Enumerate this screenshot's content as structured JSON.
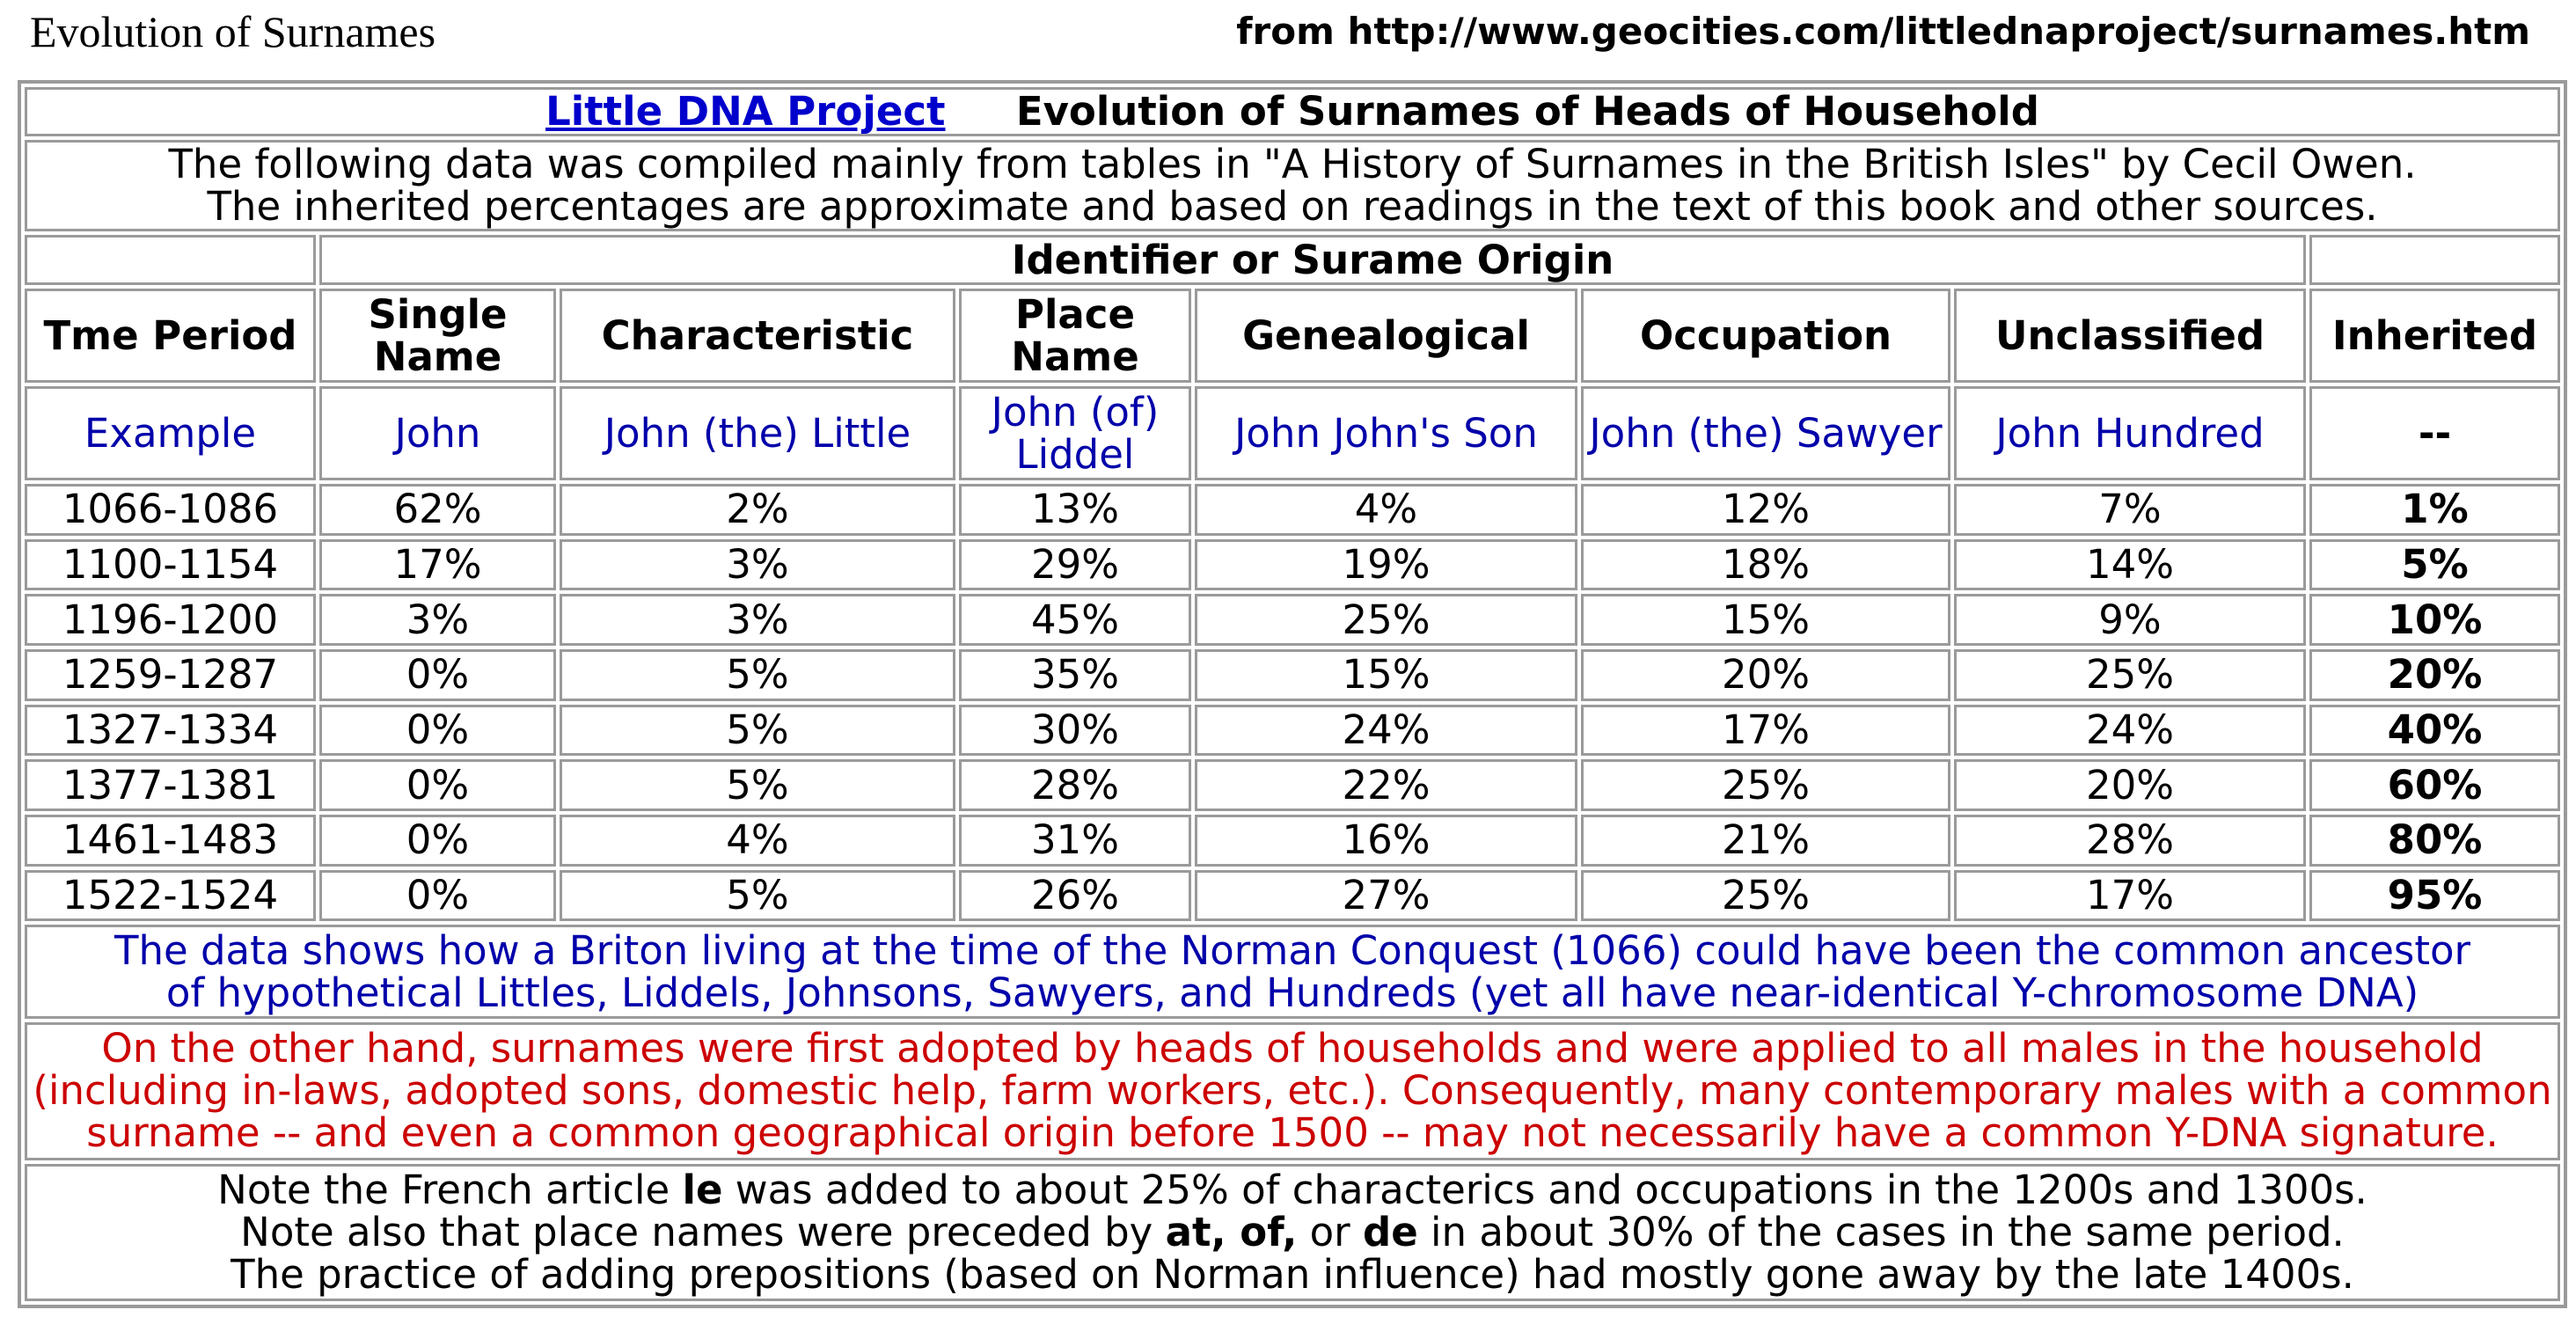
{
  "page": {
    "left_title": "Evolution of Surnames",
    "source": "from http://www.geocities.com/littlednaproject/surnames.htm"
  },
  "table": {
    "title_link": "Little DNA Project",
    "title": "Evolution of Surnames of Heads of Household",
    "intro": [
      "The following data was compiled mainly from tables in \"A History of Surnames in the British Isles\" by Cecil Owen.",
      "The inherited percentages are approximate and based on readings in the text of this book and other sources."
    ],
    "group_header": "Identifier or Surame Origin",
    "columns": [
      "Tme Period",
      "Single Name",
      "Characteristic",
      "Place Name",
      "Genealogical",
      "Occupation",
      "Unclassified",
      "Inherited"
    ],
    "examples": [
      "Example",
      "John",
      "John (the) Little",
      "John (of) Liddel",
      "John John's Son",
      "John (the) Sawyer",
      "John Hundred",
      "--"
    ],
    "rows": [
      [
        "1066-1086",
        "62%",
        "2%",
        "13%",
        "4%",
        "12%",
        "7%",
        "1%"
      ],
      [
        "1100-1154",
        "17%",
        "3%",
        "29%",
        "19%",
        "18%",
        "14%",
        "5%"
      ],
      [
        "1196-1200",
        "3%",
        "3%",
        "45%",
        "25%",
        "15%",
        "9%",
        "10%"
      ],
      [
        "1259-1287",
        "0%",
        "5%",
        "35%",
        "15%",
        "20%",
        "25%",
        "20%"
      ],
      [
        "1327-1334",
        "0%",
        "5%",
        "30%",
        "24%",
        "17%",
        "24%",
        "40%"
      ],
      [
        "1377-1381",
        "0%",
        "5%",
        "28%",
        "22%",
        "25%",
        "20%",
        "60%"
      ],
      [
        "1461-1483",
        "0%",
        "4%",
        "31%",
        "16%",
        "21%",
        "28%",
        "80%"
      ],
      [
        "1522-1524",
        "0%",
        "5%",
        "26%",
        "27%",
        "25%",
        "17%",
        "95%"
      ]
    ],
    "blue_note": [
      "The data shows how a Briton living at the time of the Norman Conquest (1066) could have been the common ancestor",
      "of hypothetical Littles, Liddels, Johnsons, Sawyers, and Hundreds (yet all have near-identical Y-chromosome DNA)"
    ],
    "red_note": [
      "On the other hand, surnames were first adopted by heads of households and were applied to all males in the household",
      "(including in-laws, adopted sons, domestic help, farm workers, etc.). Consequently, many contemporary males with a common",
      "surname -- and even a common geographical origin before 1500 -- may not necessarily have a common Y-DNA signature."
    ],
    "final_note": {
      "line1_a": "Note the French article ",
      "line1_b": "le",
      "line1_c": " was added to about 25% of characterics and occupations in the 1200s and 1300s.",
      "line2_a": "Note also that place names were preceded by ",
      "line2_b": "at, of,",
      "line2_c": " or ",
      "line2_d": "de",
      "line2_e": " in about 30% of the cases in the same period.",
      "line3": "The practice of adding prepositions (based on Norman influence) had mostly gone away by the late 1400s."
    }
  },
  "colors": {
    "link": "#0000cc",
    "example_text": "#0000aa",
    "warning_text": "#cc0000",
    "border": "#9a9a9a"
  }
}
